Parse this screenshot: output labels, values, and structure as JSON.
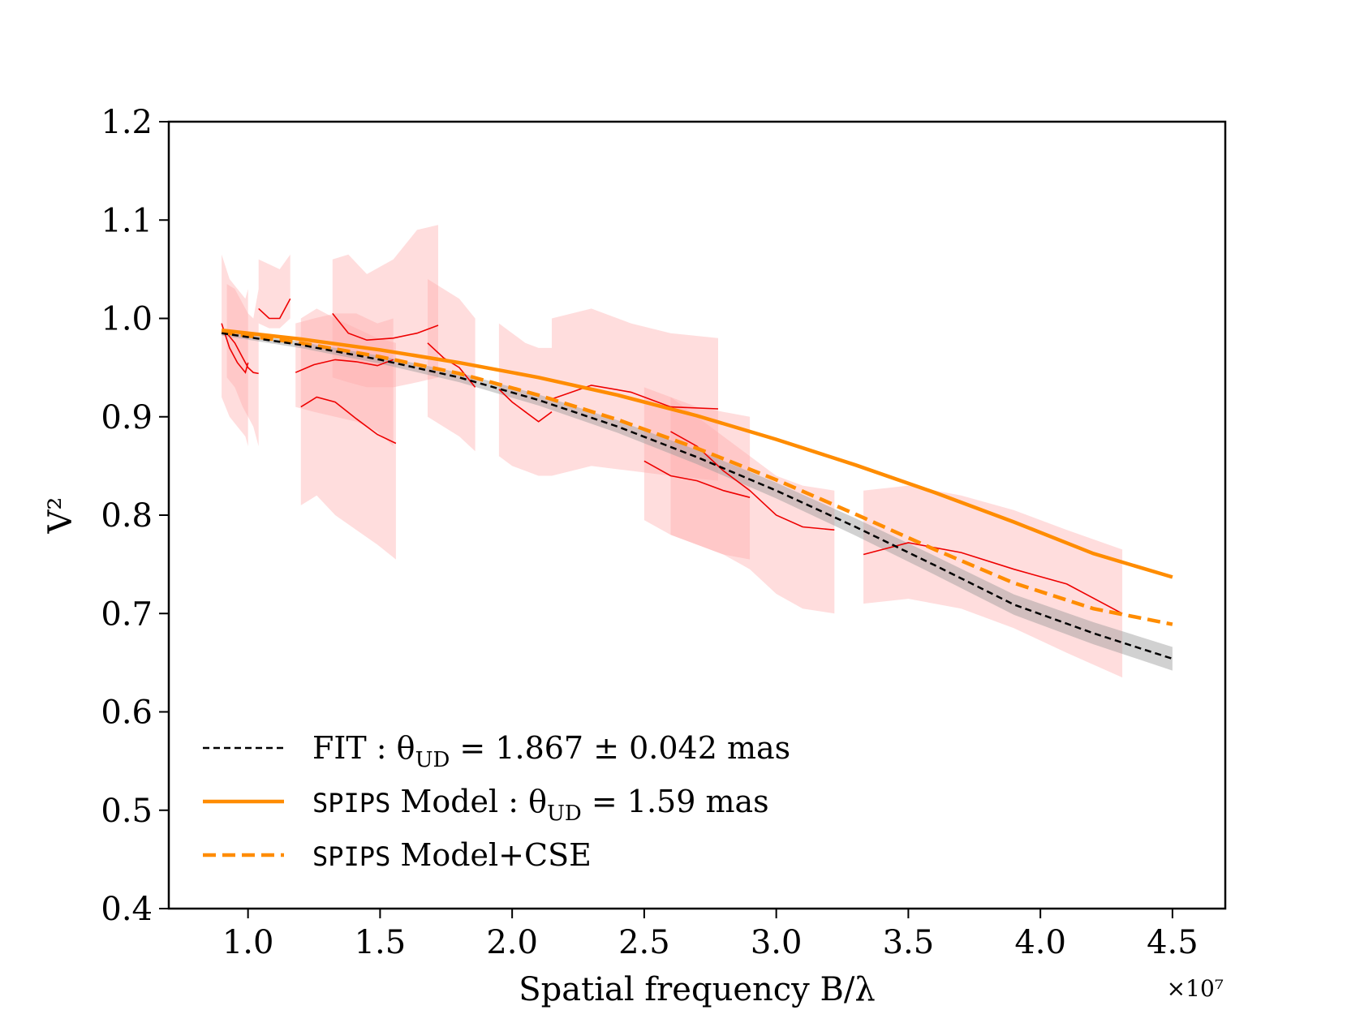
{
  "chart_data": {
    "type": "line",
    "title": "",
    "xlabel": "Spatial frequency B/λ",
    "ylabel": "V²",
    "x_multiplier": "×10⁷",
    "xlim": [
      0.7,
      4.7
    ],
    "ylim": [
      0.4,
      1.2
    ],
    "grid": false,
    "legend_position": "bottom-left",
    "xticks": [
      1.0,
      1.5,
      2.0,
      2.5,
      3.0,
      3.5,
      4.0,
      4.5
    ],
    "xtick_labels": [
      "1.0",
      "1.5",
      "2.0",
      "2.5",
      "3.0",
      "3.5",
      "4.0",
      "4.5"
    ],
    "yticks": [
      0.4,
      0.5,
      0.6,
      0.7,
      0.8,
      0.9,
      1.0,
      1.1,
      1.2
    ],
    "ytick_labels": [
      "0.4",
      "0.5",
      "0.6",
      "0.7",
      "0.8",
      "0.9",
      "1.0",
      "1.1",
      "1.2"
    ],
    "colors": {
      "fit": "#000000",
      "fit_band": "#999999",
      "model": "#ff8c00",
      "data": "#ee0000",
      "data_band": "#ffaaaa"
    },
    "models": [
      {
        "name": "fit",
        "label": "FIT",
        "legend_text": "FIT : θ_UD = 1.867 ± 0.042 mas",
        "legend_prefix": "FIT : θ",
        "legend_sub": "UD",
        "legend_suffix": " = 1.867 ± 0.042 mas",
        "style": "dashed",
        "x": [
          0.9,
          1.2,
          1.5,
          1.8,
          2.1,
          2.4,
          2.7,
          3.0,
          3.3,
          3.6,
          3.9,
          4.2,
          4.5
        ],
        "y": [
          0.985,
          0.973,
          0.958,
          0.94,
          0.917,
          0.89,
          0.859,
          0.825,
          0.788,
          0.749,
          0.709,
          0.68,
          0.654
        ],
        "band": 0.012
      },
      {
        "name": "spips",
        "label": "SPIPS Model",
        "legend_mono": "SPIPS",
        "legend_prefix": " Model : θ",
        "legend_sub": "UD",
        "legend_suffix": " = 1.59 mas",
        "style": "solid",
        "x": [
          0.9,
          1.2,
          1.5,
          1.8,
          2.1,
          2.4,
          2.7,
          3.0,
          3.3,
          3.6,
          3.9,
          4.2,
          4.5
        ],
        "y": [
          0.988,
          0.979,
          0.968,
          0.955,
          0.94,
          0.922,
          0.901,
          0.877,
          0.851,
          0.823,
          0.793,
          0.761,
          0.737
        ]
      },
      {
        "name": "spips_cse",
        "label": "SPIPS Model+CSE",
        "legend_mono": "SPIPS",
        "legend_prefix": " Model+CSE",
        "style": "dashed-thick",
        "x": [
          0.9,
          1.2,
          1.5,
          1.8,
          2.1,
          2.4,
          2.7,
          3.0,
          3.3,
          3.6,
          3.9,
          4.2,
          4.5
        ],
        "y": [
          0.986,
          0.975,
          0.961,
          0.944,
          0.922,
          0.897,
          0.868,
          0.836,
          0.801,
          0.765,
          0.731,
          0.705,
          0.689
        ]
      }
    ],
    "data_series": [
      {
        "x": [
          0.9,
          0.93,
          0.96,
          0.99,
          1.0
        ],
        "y": [
          0.995,
          0.97,
          0.955,
          0.945,
          0.955
        ],
        "lo": [
          0.92,
          0.9,
          0.89,
          0.88,
          0.87
        ],
        "hi": [
          1.065,
          1.04,
          1.03,
          1.02,
          1.03
        ]
      },
      {
        "x": [
          0.92,
          0.95,
          0.98,
          1.0,
          1.02,
          1.04
        ],
        "y": [
          0.985,
          0.975,
          0.96,
          0.95,
          0.945,
          0.944
        ],
        "lo": [
          0.94,
          0.93,
          0.91,
          0.9,
          0.89,
          0.87
        ],
        "hi": [
          1.035,
          1.03,
          1.015,
          1.005,
          1.0,
          1.03
        ]
      },
      {
        "x": [
          1.04,
          1.08,
          1.12,
          1.16
        ],
        "y": [
          1.01,
          1.0,
          1.0,
          1.02
        ],
        "lo": [
          0.995,
          0.99,
          0.99,
          1.0
        ],
        "hi": [
          1.06,
          1.055,
          1.05,
          1.065
        ]
      },
      {
        "x": [
          1.18,
          1.25,
          1.33,
          1.41,
          1.49,
          1.55
        ],
        "y": [
          0.945,
          0.953,
          0.958,
          0.956,
          0.952,
          0.958
        ],
        "lo": [
          0.91,
          0.905,
          0.9,
          0.895,
          0.885,
          0.87
        ],
        "hi": [
          0.995,
          1.0,
          1.005,
          1.005,
          0.995,
          1.0
        ]
      },
      {
        "x": [
          1.2,
          1.26,
          1.33,
          1.41,
          1.49,
          1.56
        ],
        "y": [
          0.91,
          0.92,
          0.915,
          0.898,
          0.882,
          0.873
        ],
        "lo": [
          0.81,
          0.82,
          0.8,
          0.785,
          0.77,
          0.755
        ],
        "hi": [
          1.0,
          1.01,
          1.0,
          0.99,
          0.98,
          0.975
        ]
      },
      {
        "x": [
          1.32,
          1.38,
          1.45,
          1.55,
          1.64,
          1.72
        ],
        "y": [
          1.005,
          0.985,
          0.978,
          0.98,
          0.985,
          0.993
        ],
        "lo": [
          0.94,
          0.935,
          0.93,
          0.93,
          0.935,
          0.94
        ],
        "hi": [
          1.06,
          1.065,
          1.045,
          1.06,
          1.09,
          1.095
        ]
      },
      {
        "x": [
          1.68,
          1.74,
          1.8,
          1.86
        ],
        "y": [
          0.975,
          0.96,
          0.95,
          0.93
        ],
        "lo": [
          0.9,
          0.89,
          0.88,
          0.865
        ],
        "hi": [
          1.04,
          1.03,
          1.02,
          1.0
        ]
      },
      {
        "x": [
          1.95,
          2.0,
          2.05,
          2.1,
          2.15
        ],
        "y": [
          0.928,
          0.915,
          0.905,
          0.895,
          0.905
        ],
        "lo": [
          0.86,
          0.85,
          0.845,
          0.84,
          0.84
        ],
        "hi": [
          0.995,
          0.985,
          0.975,
          0.97,
          0.97
        ]
      },
      {
        "x": [
          2.15,
          2.3,
          2.45,
          2.6,
          2.78
        ],
        "y": [
          0.918,
          0.932,
          0.925,
          0.91,
          0.908
        ],
        "lo": [
          0.84,
          0.85,
          0.845,
          0.84,
          0.835
        ],
        "hi": [
          1.0,
          1.01,
          0.995,
          0.985,
          0.98
        ]
      },
      {
        "x": [
          2.5,
          2.6,
          2.7,
          2.8,
          2.9
        ],
        "y": [
          0.855,
          0.84,
          0.835,
          0.825,
          0.818
        ],
        "lo": [
          0.795,
          0.78,
          0.77,
          0.76,
          0.755
        ],
        "hi": [
          0.93,
          0.92,
          0.91,
          0.905,
          0.9
        ]
      },
      {
        "x": [
          2.6,
          2.7,
          2.8,
          2.9,
          3.0,
          3.1,
          3.22
        ],
        "y": [
          0.885,
          0.87,
          0.845,
          0.825,
          0.8,
          0.788,
          0.785
        ],
        "lo": [
          0.78,
          0.77,
          0.76,
          0.745,
          0.72,
          0.705,
          0.7
        ],
        "hi": [
          0.92,
          0.9,
          0.88,
          0.86,
          0.84,
          0.83,
          0.825
        ]
      },
      {
        "x": [
          3.33,
          3.5,
          3.7,
          3.9,
          4.1,
          4.31
        ],
        "y": [
          0.76,
          0.772,
          0.762,
          0.745,
          0.73,
          0.7
        ],
        "lo": [
          0.71,
          0.715,
          0.705,
          0.685,
          0.66,
          0.635
        ],
        "hi": [
          0.825,
          0.83,
          0.82,
          0.805,
          0.785,
          0.765
        ]
      }
    ]
  }
}
